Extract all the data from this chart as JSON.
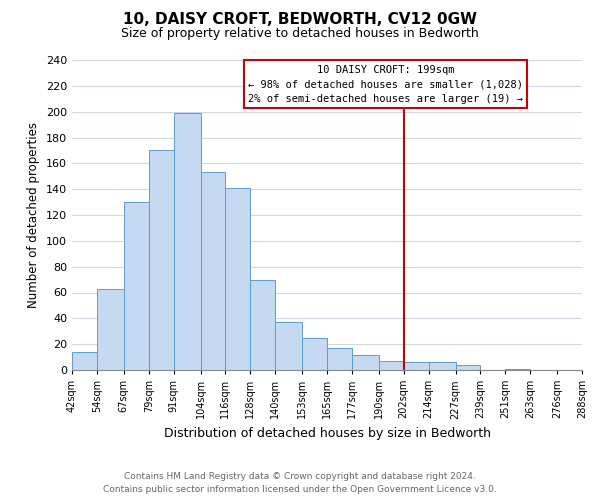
{
  "title": "10, DAISY CROFT, BEDWORTH, CV12 0GW",
  "subtitle": "Size of property relative to detached houses in Bedworth",
  "xlabel": "Distribution of detached houses by size in Bedworth",
  "ylabel": "Number of detached properties",
  "bin_labels": [
    "42sqm",
    "54sqm",
    "67sqm",
    "79sqm",
    "91sqm",
    "104sqm",
    "116sqm",
    "128sqm",
    "140sqm",
    "153sqm",
    "165sqm",
    "177sqm",
    "190sqm",
    "202sqm",
    "214sqm",
    "227sqm",
    "239sqm",
    "251sqm",
    "263sqm",
    "276sqm",
    "288sqm"
  ],
  "bar_heights": [
    14,
    63,
    130,
    170,
    199,
    153,
    141,
    70,
    37,
    25,
    17,
    12,
    7,
    6,
    6,
    4,
    0,
    1,
    0,
    0
  ],
  "bar_color": "#c5d9f0",
  "bar_edge_color": "#5b9bd5",
  "property_line_index": 13,
  "annotation_title": "10 DAISY CROFT: 199sqm",
  "annotation_line1": "← 98% of detached houses are smaller (1,028)",
  "annotation_line2": "2% of semi-detached houses are larger (19) →",
  "annotation_box_color": "#ffffff",
  "annotation_box_edge_color": "#cc0000",
  "ylim": [
    0,
    240
  ],
  "yticks": [
    0,
    20,
    40,
    60,
    80,
    100,
    120,
    140,
    160,
    180,
    200,
    220,
    240
  ],
  "footer1": "Contains HM Land Registry data © Crown copyright and database right 2024.",
  "footer2": "Contains public sector information licensed under the Open Government Licence v3.0.",
  "background_color": "#ffffff",
  "grid_color": "#d0d8e8"
}
